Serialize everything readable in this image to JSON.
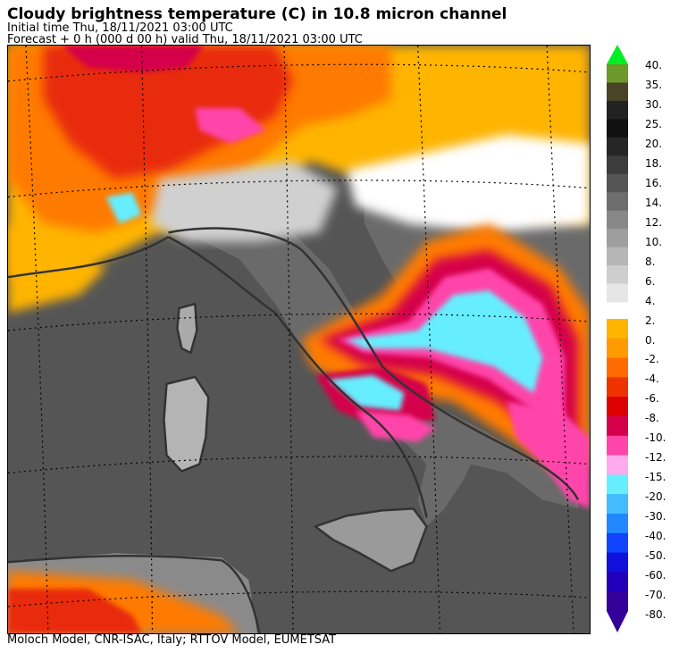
{
  "header": {
    "title": "Cloudy brightness temperature (C) in   10.8 micron channel",
    "initial_time": "Initial time  Thu, 18/11/2021  03:00 UTC",
    "forecast": "Forecast  +   0 h  (000 d 00 h)  valid Thu, 18/11/2021 03:00 UTC"
  },
  "footer": {
    "credits": "Moloch Model, CNR-ISAC, Italy; RTTOV Model, EUMETSAT"
  },
  "colorbar": {
    "labels": [
      "40.",
      "35.",
      "30.",
      "25.",
      "20.",
      "18.",
      "16.",
      "14.",
      "12.",
      "10.",
      "8.",
      "6.",
      "4.",
      "2.",
      "0.",
      "-2.",
      "-4.",
      "-6.",
      "-8.",
      "-10.",
      "-12.",
      "-15.",
      "-20.",
      "-30.",
      "-40.",
      "-50.",
      "-60.",
      "-70.",
      "-80."
    ],
    "upper_colors": [
      "#6b9a2a",
      "#4a4426",
      "#222222",
      "#111111",
      "#262626",
      "#3c3c3c",
      "#555555",
      "#6e6e6e",
      "#888888",
      "#9e9e9e",
      "#b6b6b6",
      "#cecece",
      "#e6e6e6"
    ],
    "lower_colors": [
      "#ffb400",
      "#ff9a00",
      "#ff6a00",
      "#ee3300",
      "#dd0000",
      "#d4004a",
      "#ff44aa",
      "#ffaaee",
      "#66eeff",
      "#44bbff",
      "#2288ff",
      "#1144ff",
      "#1111dd",
      "#2200bb",
      "#330099"
    ],
    "top_arrow_color": "#00ee22",
    "bottom_arrow_color": "#330099"
  },
  "map": {
    "sea_color": "#555555",
    "land_color": "#6a6a6a",
    "coastline_color": "#333333",
    "grid_color": "#000000"
  }
}
